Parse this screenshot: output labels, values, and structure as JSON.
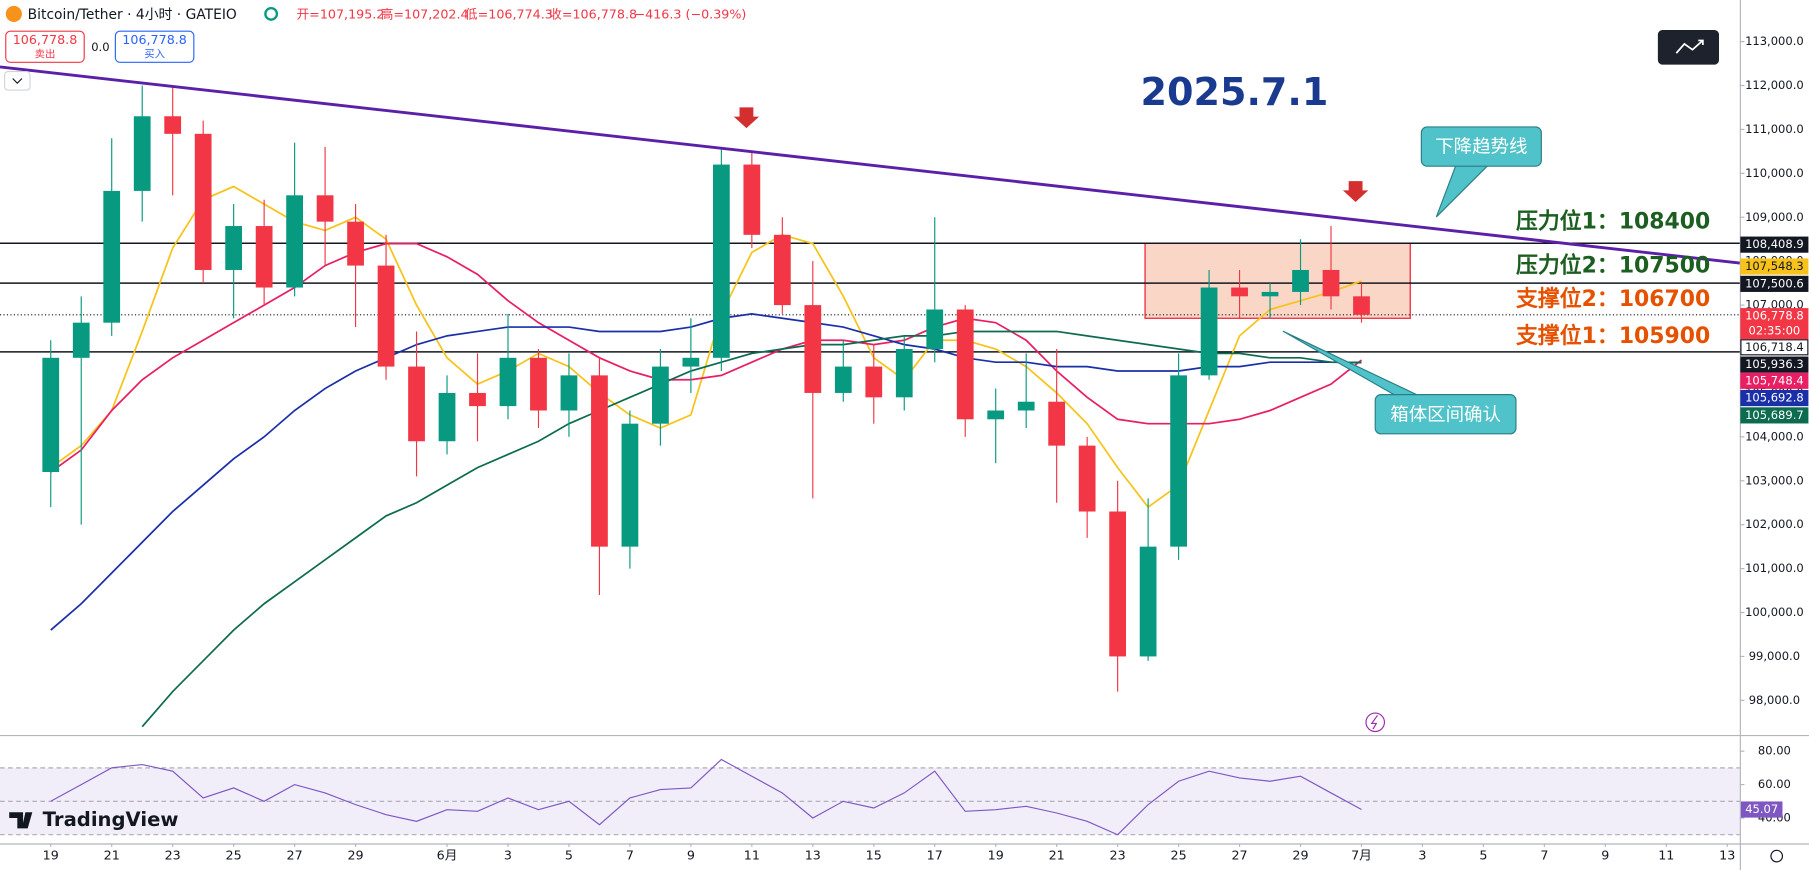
{
  "header": {
    "symbol": "Bitcoin/Tether · 4小时 · GATEIO",
    "open": "开=107,195.2",
    "high": "高=107,202.4",
    "low": "低=106,774.3",
    "close": "收=106,778.8",
    "change": "−416.3 (−0.39%)",
    "sell_price": "106,778.8",
    "sell": "卖出",
    "spread": "0.0",
    "buy_price": "106,778.8",
    "buy": "买入",
    "logo": "TradingView"
  },
  "chart_data": [
    {
      "type": "candlestick",
      "x": [
        0,
        1,
        2,
        3,
        4,
        5,
        6,
        7,
        8,
        9,
        10,
        11,
        12,
        13,
        14,
        15,
        16,
        17,
        18,
        19,
        20,
        21,
        22,
        23,
        24,
        25,
        26,
        27,
        28,
        29,
        30,
        31,
        32,
        33,
        34,
        35,
        36,
        37,
        38,
        39,
        40,
        41,
        42,
        43
      ],
      "open": [
        103200,
        105800,
        106600,
        109600,
        111300,
        110900,
        107800,
        108800,
        107400,
        109500,
        108900,
        107900,
        105600,
        103900,
        105000,
        104700,
        105800,
        104600,
        105400,
        101500,
        104300,
        105600,
        105800,
        110200,
        108600,
        107000,
        105000,
        105600,
        104900,
        106000,
        106900,
        104400,
        104600,
        104800,
        103800,
        102300,
        99000,
        101500,
        105400,
        107400,
        107200,
        107300,
        107800,
        107200
      ],
      "high": [
        106200,
        107200,
        110800,
        112000,
        112000,
        111200,
        109300,
        109400,
        110700,
        110600,
        109300,
        108600,
        106400,
        105400,
        105900,
        106800,
        106000,
        105900,
        105800,
        104600,
        106000,
        106700,
        110600,
        110500,
        109000,
        108000,
        106200,
        106100,
        106300,
        109000,
        107000,
        105100,
        105900,
        106000,
        104000,
        103000,
        102600,
        105900,
        107800,
        107800,
        107500,
        108500,
        108800,
        107500
      ],
      "low": [
        102400,
        102000,
        106300,
        108900,
        109500,
        107500,
        106700,
        107000,
        107200,
        107900,
        106500,
        105300,
        103100,
        103600,
        103900,
        104400,
        104200,
        104000,
        100400,
        101000,
        103800,
        105000,
        105500,
        108300,
        106800,
        102600,
        104800,
        104300,
        104600,
        105700,
        104000,
        103400,
        104200,
        102500,
        101700,
        98200,
        98900,
        101200,
        105300,
        106700,
        106700,
        107000,
        106900,
        106600
      ],
      "close": [
        105800,
        106600,
        109600,
        111300,
        110900,
        107800,
        108800,
        107400,
        109500,
        108900,
        107900,
        105600,
        103900,
        105000,
        104700,
        105800,
        104600,
        105400,
        101500,
        104300,
        105600,
        105800,
        110200,
        108600,
        107000,
        105000,
        105600,
        104900,
        106000,
        106900,
        104400,
        104600,
        104800,
        103800,
        102300,
        99000,
        101500,
        105400,
        107400,
        107200,
        107300,
        107800,
        107200,
        106778.8
      ],
      "up_color": "#089981",
      "down_color": "#f23645",
      "series": [
        {
          "color": "#f7c31a",
          "values": [
            103300,
            103800,
            104600,
            106400,
            108300,
            109400,
            109700,
            109300,
            108900,
            108700,
            109000,
            108500,
            107000,
            105800,
            105200,
            105500,
            105900,
            105600,
            105000,
            104500,
            104200,
            104500,
            106800,
            108200,
            108600,
            108400,
            107200,
            105800,
            105300,
            106200,
            106200,
            106000,
            105600,
            105000,
            104300,
            103300,
            102400,
            102900,
            104600,
            106300,
            106900,
            107100,
            107300,
            107548.3
          ]
        },
        {
          "color": "#e91e63",
          "values": [
            103200,
            103700,
            104600,
            105300,
            105800,
            106200,
            106600,
            107000,
            107400,
            107900,
            108200,
            108400,
            108400,
            108100,
            107700,
            107100,
            106600,
            106200,
            105800,
            105500,
            105300,
            105300,
            105400,
            105700,
            106000,
            106200,
            106200,
            106100,
            106200,
            106500,
            106700,
            106600,
            106200,
            105500,
            104900,
            104400,
            104300,
            104300,
            104300,
            104400,
            104600,
            104900,
            105200,
            105748.4
          ]
        },
        {
          "color": "#1a2fa8",
          "values": [
            99600,
            100200,
            100900,
            101600,
            102300,
            102900,
            103500,
            104000,
            104600,
            105100,
            105500,
            105800,
            106100,
            106300,
            106400,
            106500,
            106500,
            106500,
            106400,
            106400,
            106400,
            106500,
            106700,
            106800,
            106700,
            106600,
            106500,
            106300,
            106100,
            106000,
            105800,
            105700,
            105700,
            105600,
            105600,
            105500,
            105500,
            105500,
            105600,
            105600,
            105700,
            105700,
            105700,
            105692.8
          ]
        },
        {
          "color": "#0d6b4f",
          "values": [
            null,
            null,
            null,
            97400,
            98200,
            98900,
            99600,
            100200,
            100700,
            101200,
            101700,
            102200,
            102500,
            102900,
            103300,
            103600,
            103900,
            104300,
            104600,
            104900,
            105200,
            105500,
            105700,
            105900,
            106000,
            106100,
            106100,
            106200,
            106300,
            106300,
            106400,
            106400,
            106400,
            106400,
            106300,
            106200,
            106100,
            106000,
            105900,
            105900,
            105800,
            105800,
            105700,
            105689.7
          ]
        }
      ],
      "xlim": [
        -1.665,
        55.41
      ],
      "ylim": [
        97212,
        113946
      ],
      "yticks": [
        {
          "value": 98000,
          "label": "98,000.0"
        },
        {
          "value": 99000,
          "label": "99,000.0"
        },
        {
          "value": 100000,
          "label": "100,000.0"
        },
        {
          "value": 101000,
          "label": "101,000.0"
        },
        {
          "value": 102000,
          "label": "102,000.0"
        },
        {
          "value": 103000,
          "label": "103,000.0"
        },
        {
          "value": 104000,
          "label": "104,000.0"
        },
        {
          "value": 105000,
          "label": "105,000.0"
        },
        {
          "value": 106000,
          "label": "106,000.0"
        },
        {
          "value": 107000,
          "label": "107,000.0"
        },
        {
          "value": 108000,
          "label": "108,000.0"
        },
        {
          "value": 109000,
          "label": "109,000.0"
        },
        {
          "value": 110000,
          "label": "110,000.0"
        },
        {
          "value": 111000,
          "label": "111,000.0"
        },
        {
          "value": 112000,
          "label": "112,000.0"
        },
        {
          "value": 113000,
          "label": "113,000.0"
        }
      ],
      "xticks": [
        {
          "value": 0,
          "label": "19"
        },
        {
          "value": 2,
          "label": "21"
        },
        {
          "value": 4,
          "label": "23"
        },
        {
          "value": 6,
          "label": "25"
        },
        {
          "value": 8,
          "label": "27"
        },
        {
          "value": 10,
          "label": "29"
        },
        {
          "value": 13,
          "label": "6月"
        },
        {
          "value": 15,
          "label": "3"
        },
        {
          "value": 17,
          "label": "5"
        },
        {
          "value": 19,
          "label": "7"
        },
        {
          "value": 21,
          "label": "9"
        },
        {
          "value": 23,
          "label": "11"
        },
        {
          "value": 25,
          "label": "13"
        },
        {
          "value": 27,
          "label": "15"
        },
        {
          "value": 29,
          "label": "17"
        },
        {
          "value": 31,
          "label": "19"
        },
        {
          "value": 33,
          "label": "21"
        },
        {
          "value": 35,
          "label": "23"
        },
        {
          "value": 37,
          "label": "25"
        },
        {
          "value": 39,
          "label": "27"
        },
        {
          "value": 41,
          "label": "29"
        },
        {
          "value": 43,
          "label": "7月"
        },
        {
          "value": 45,
          "label": "3"
        },
        {
          "value": 47,
          "label": "5"
        },
        {
          "value": 49,
          "label": "7"
        },
        {
          "value": 51,
          "label": "9"
        },
        {
          "value": 53,
          "label": "11"
        },
        {
          "value": 55,
          "label": "13"
        }
      ],
      "price_labels": [
        {
          "value": 108408.9,
          "label": "108,408.9",
          "bg": "#131722",
          "fg": "#ffffff",
          "line": "solid"
        },
        {
          "value": 107548.3,
          "label": "107,548.3",
          "bg": "#f7c31a",
          "fg": "#131722"
        },
        {
          "value": 107500.6,
          "label": "107,500.6",
          "bg": "#131722",
          "fg": "#ffffff",
          "line": "solid"
        },
        {
          "value": 106778.8,
          "label": "106,778.8",
          "sub": "02:35:00",
          "bg": "#f23645",
          "fg": "#ffffff",
          "line": "dotted"
        },
        {
          "value": 106718.4,
          "label": "106,718.4",
          "bg": "#ffffff",
          "fg": "#131722"
        },
        {
          "value": 105936.3,
          "label": "105,936.3",
          "bg": "#131722",
          "fg": "#ffffff",
          "line": "solid"
        },
        {
          "value": 105748.4,
          "label": "105,748.4",
          "bg": "#e91e63",
          "fg": "#ffffff"
        },
        {
          "value": 105692.8,
          "label": "105,692.8",
          "bg": "#1a2fa8",
          "fg": "#ffffff"
        },
        {
          "value": 105689.7,
          "label": "105,689.7",
          "bg": "#0d6b4f",
          "fg": "#ffffff"
        }
      ],
      "trendline": {
        "color": "#5b1fa8",
        "x": [
          -1.665,
          55.41
        ],
        "y": [
          112422,
          107957
        ]
      },
      "box": {
        "x": [
          35.9,
          44.6
        ],
        "y": [
          106700,
          108408.9
        ],
        "color": "#f4a582"
      },
      "annotations": [
        {
          "text": "2025.7.1",
          "color": "#1a3a8f"
        },
        {
          "text": "下降趋势线",
          "color": "#ffffff"
        },
        {
          "text": "压力位1：108400",
          "color": "#1b5e20"
        },
        {
          "text": "压力位2：107500",
          "color": "#1b5e20"
        },
        {
          "text": "支撑位2：106700",
          "color": "#e65100"
        },
        {
          "text": "支撑位1：105900",
          "color": "#e65100"
        },
        {
          "text": "箱体区间确认",
          "color": "#ffffff"
        }
      ]
    },
    {
      "type": "line",
      "x": [
        0,
        1,
        2,
        3,
        4,
        5,
        6,
        7,
        8,
        9,
        10,
        11,
        12,
        13,
        14,
        15,
        16,
        17,
        18,
        19,
        20,
        21,
        22,
        23,
        24,
        25,
        26,
        27,
        28,
        29,
        30,
        31,
        32,
        33,
        34,
        35,
        36,
        37,
        38,
        39,
        40,
        41,
        42,
        43
      ],
      "values": [
        50,
        60,
        70,
        72,
        68,
        52,
        58,
        50,
        60,
        55,
        48,
        42,
        38,
        45,
        44,
        52,
        45,
        50,
        36,
        52,
        57,
        58,
        75,
        65,
        55,
        40,
        50,
        46,
        55,
        68,
        44,
        45,
        47,
        43,
        38,
        30,
        48,
        62,
        68,
        64,
        62,
        65,
        55,
        45.07
      ],
      "color": "#7e57c2",
      "xlim": [
        -1.665,
        55.41
      ],
      "ylim": [
        24.8,
        89
      ],
      "yticks": [
        {
          "value": 80,
          "label": "80.00"
        },
        {
          "value": 60,
          "label": "60.00"
        },
        {
          "value": 40,
          "label": "40.00"
        }
      ],
      "band": [
        30,
        70
      ],
      "midline": 50
    }
  ]
}
